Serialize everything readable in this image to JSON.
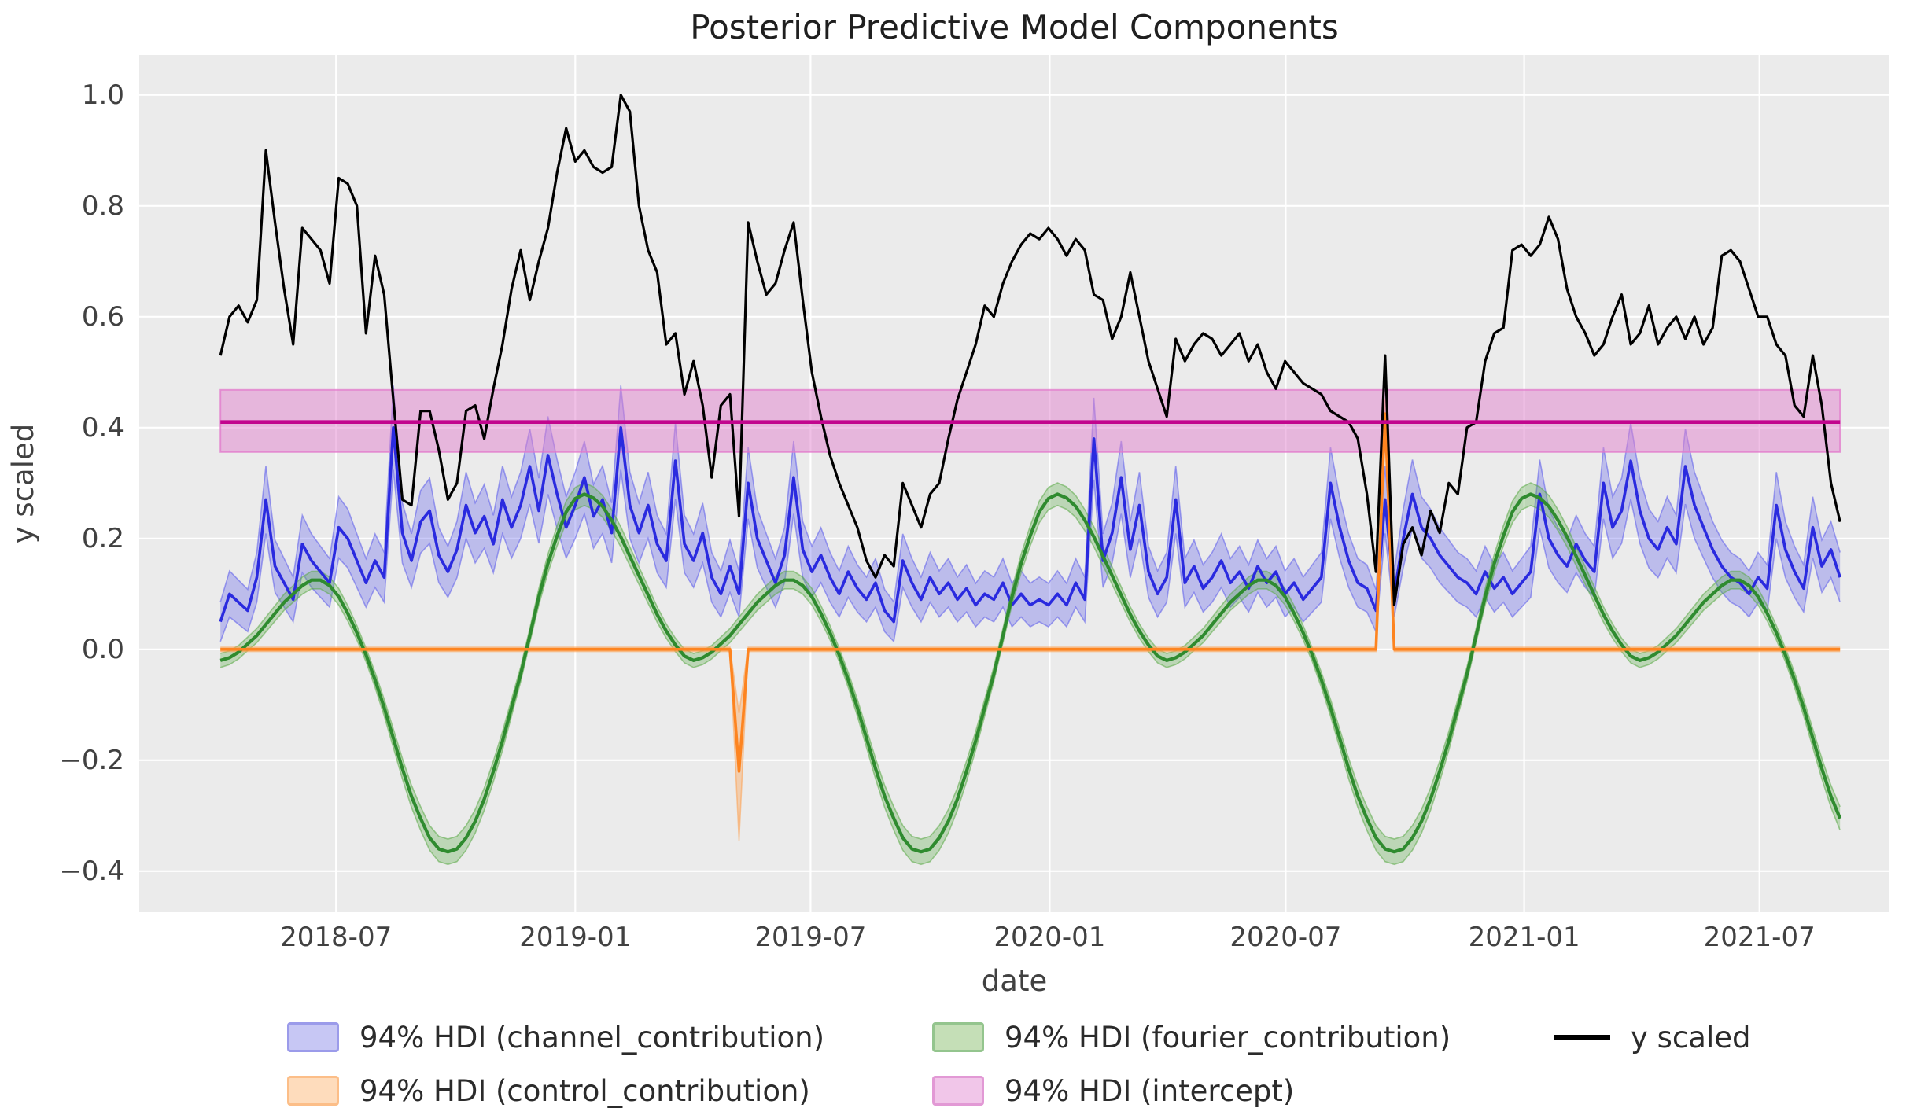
{
  "title": "Posterior Predictive Model Components",
  "axes": {
    "xlabel": "date",
    "ylabel": "y scaled",
    "background_color": "#ebebeb",
    "grid_color": "#ffffff",
    "x_range_decimal_years": [
      2018.081,
      2021.77
    ],
    "y_range": [
      -0.474,
      1.072
    ],
    "x_ticks": [
      {
        "year": 2018.4959,
        "label": "2018-07"
      },
      {
        "year": 2019.0,
        "label": "2019-01"
      },
      {
        "year": 2019.4959,
        "label": "2019-07"
      },
      {
        "year": 2020.0,
        "label": "2020-01"
      },
      {
        "year": 2020.4973,
        "label": "2020-07"
      },
      {
        "year": 2021.0,
        "label": "2021-01"
      },
      {
        "year": 2021.4959,
        "label": "2021-07"
      }
    ],
    "y_ticks": [
      {
        "v": 1.0,
        "label": "1.0"
      },
      {
        "v": 0.8,
        "label": "0.8"
      },
      {
        "v": 0.6,
        "label": "0.6"
      },
      {
        "v": 0.4,
        "label": "0.4"
      },
      {
        "v": 0.2,
        "label": "0.2"
      },
      {
        "v": 0.0,
        "label": "0.0"
      },
      {
        "v": -0.2,
        "label": "−0.2"
      },
      {
        "v": -0.4,
        "label": "−0.4"
      }
    ]
  },
  "legend": {
    "items": [
      {
        "label": "94% HDI (channel_contribution)",
        "swatch": "patch",
        "fill": "#c7c7f4",
        "border": "#9b9bea",
        "row": 0,
        "col": 0
      },
      {
        "label": "94% HDI (control_contribution)",
        "swatch": "patch",
        "fill": "#fedcbc",
        "border": "#fcbe88",
        "row": 1,
        "col": 0
      },
      {
        "label": "94% HDI (fourier_contribution)",
        "swatch": "patch",
        "fill": "#c5dfb7",
        "border": "#94c58e",
        "row": 0,
        "col": 1
      },
      {
        "label": "94% HDI (intercept)",
        "swatch": "patch",
        "fill": "#f1c6e9",
        "border": "#e299d5",
        "row": 1,
        "col": 1
      },
      {
        "label": "y scaled",
        "swatch": "line",
        "color": "#000000",
        "row": 0,
        "col": 2
      }
    ]
  },
  "chart_data": {
    "type": "line",
    "title": "Posterior Predictive Model Components",
    "xlabel": "date",
    "ylabel": "y scaled",
    "x_start_date": "2018-04-02",
    "x_start_decimal_year": 2018.2521,
    "x_step_days": 7,
    "n_points": 179,
    "series": [
      {
        "name": "y scaled",
        "role": "observed",
        "color": "#000000",
        "line_width": 3.2,
        "values": [
          0.53,
          0.6,
          0.62,
          0.59,
          0.63,
          0.9,
          0.77,
          0.65,
          0.55,
          0.76,
          0.74,
          0.72,
          0.66,
          0.85,
          0.84,
          0.8,
          0.57,
          0.71,
          0.64,
          0.45,
          0.27,
          0.26,
          0.43,
          0.43,
          0.36,
          0.27,
          0.3,
          0.43,
          0.44,
          0.38,
          0.47,
          0.55,
          0.65,
          0.72,
          0.63,
          0.7,
          0.76,
          0.86,
          0.94,
          0.88,
          0.9,
          0.87,
          0.86,
          0.87,
          1.0,
          0.97,
          0.8,
          0.72,
          0.68,
          0.55,
          0.57,
          0.46,
          0.52,
          0.44,
          0.31,
          0.44,
          0.46,
          0.24,
          0.77,
          0.7,
          0.64,
          0.66,
          0.72,
          0.77,
          0.63,
          0.5,
          0.42,
          0.35,
          0.3,
          0.26,
          0.22,
          0.16,
          0.13,
          0.17,
          0.15,
          0.3,
          0.26,
          0.22,
          0.28,
          0.3,
          0.38,
          0.45,
          0.5,
          0.55,
          0.62,
          0.6,
          0.66,
          0.7,
          0.73,
          0.75,
          0.74,
          0.76,
          0.74,
          0.71,
          0.74,
          0.72,
          0.64,
          0.63,
          0.56,
          0.6,
          0.68,
          0.6,
          0.52,
          0.47,
          0.42,
          0.56,
          0.52,
          0.55,
          0.57,
          0.56,
          0.53,
          0.55,
          0.57,
          0.52,
          0.55,
          0.5,
          0.47,
          0.52,
          0.5,
          0.48,
          0.47,
          0.46,
          0.43,
          0.42,
          0.41,
          0.38,
          0.28,
          0.14,
          0.53,
          0.08,
          0.19,
          0.22,
          0.17,
          0.25,
          0.21,
          0.3,
          0.28,
          0.4,
          0.41,
          0.52,
          0.57,
          0.58,
          0.72,
          0.73,
          0.71,
          0.73,
          0.78,
          0.74,
          0.65,
          0.6,
          0.57,
          0.53,
          0.55,
          0.6,
          0.64,
          0.55,
          0.57,
          0.62,
          0.55,
          0.58,
          0.6,
          0.56,
          0.6,
          0.55,
          0.58,
          0.71,
          0.72,
          0.7,
          0.65,
          0.6,
          0.6,
          0.55,
          0.53,
          0.44,
          0.42,
          0.53,
          0.44,
          0.3,
          0.23
        ]
      },
      {
        "name": "channel_contribution",
        "role": "hdi_band",
        "hdi_label": "94% HDI (channel_contribution)",
        "color": "#2a2adf",
        "line_width": 3.6,
        "band_fill": "rgba(80,80,235,0.30)",
        "band_edge": "rgba(80,80,235,0.50)",
        "hdi_halfwidth_base": 0.03,
        "hdi_halfwidth_scale": 0.115,
        "hdi_scale_on_abs": false,
        "values": [
          0.05,
          0.1,
          0.085,
          0.07,
          0.13,
          0.27,
          0.15,
          0.12,
          0.09,
          0.19,
          0.16,
          0.14,
          0.12,
          0.22,
          0.2,
          0.16,
          0.12,
          0.16,
          0.13,
          0.4,
          0.21,
          0.16,
          0.23,
          0.25,
          0.17,
          0.14,
          0.18,
          0.26,
          0.21,
          0.24,
          0.19,
          0.27,
          0.22,
          0.26,
          0.33,
          0.25,
          0.35,
          0.28,
          0.22,
          0.26,
          0.31,
          0.24,
          0.27,
          0.21,
          0.4,
          0.26,
          0.21,
          0.26,
          0.19,
          0.16,
          0.34,
          0.19,
          0.16,
          0.21,
          0.13,
          0.1,
          0.15,
          0.1,
          0.3,
          0.2,
          0.16,
          0.12,
          0.17,
          0.31,
          0.18,
          0.14,
          0.17,
          0.13,
          0.1,
          0.14,
          0.11,
          0.09,
          0.12,
          0.07,
          0.05,
          0.16,
          0.12,
          0.09,
          0.13,
          0.1,
          0.12,
          0.09,
          0.11,
          0.08,
          0.1,
          0.09,
          0.12,
          0.08,
          0.1,
          0.08,
          0.09,
          0.08,
          0.1,
          0.08,
          0.12,
          0.09,
          0.38,
          0.16,
          0.21,
          0.31,
          0.18,
          0.26,
          0.14,
          0.1,
          0.13,
          0.27,
          0.12,
          0.15,
          0.11,
          0.13,
          0.16,
          0.12,
          0.14,
          0.11,
          0.15,
          0.12,
          0.14,
          0.1,
          0.12,
          0.09,
          0.11,
          0.13,
          0.3,
          0.22,
          0.16,
          0.12,
          0.11,
          0.07,
          0.27,
          0.1,
          0.2,
          0.28,
          0.22,
          0.2,
          0.17,
          0.15,
          0.13,
          0.12,
          0.1,
          0.14,
          0.11,
          0.13,
          0.1,
          0.12,
          0.14,
          0.28,
          0.2,
          0.17,
          0.15,
          0.19,
          0.16,
          0.14,
          0.3,
          0.22,
          0.25,
          0.34,
          0.25,
          0.2,
          0.18,
          0.22,
          0.19,
          0.33,
          0.26,
          0.22,
          0.18,
          0.15,
          0.13,
          0.12,
          0.1,
          0.13,
          0.11,
          0.26,
          0.18,
          0.14,
          0.11,
          0.22,
          0.15,
          0.18,
          0.13
        ]
      },
      {
        "name": "fourier_contribution",
        "role": "hdi_band",
        "hdi_label": "94% HDI (fourier_contribution)",
        "color": "#2f8b2f",
        "line_width": 4.2,
        "band_fill": "rgba(90,170,70,0.32)",
        "band_edge": "rgba(90,170,70,0.55)",
        "hdi_halfwidth_base": 0.012,
        "hdi_halfwidth_scale": 0.03,
        "hdi_scale_on_abs": true,
        "values": [
          -0.02,
          -0.015,
          -0.005,
          0.01,
          0.025,
          0.045,
          0.065,
          0.085,
          0.1,
          0.115,
          0.125,
          0.125,
          0.115,
          0.095,
          0.065,
          0.03,
          -0.01,
          -0.055,
          -0.105,
          -0.16,
          -0.215,
          -0.265,
          -0.305,
          -0.34,
          -0.36,
          -0.365,
          -0.36,
          -0.34,
          -0.31,
          -0.27,
          -0.22,
          -0.165,
          -0.105,
          -0.045,
          0.025,
          0.095,
          0.155,
          0.205,
          0.248,
          0.272,
          0.28,
          0.273,
          0.258,
          0.233,
          0.203,
          0.168,
          0.133,
          0.098,
          0.063,
          0.033,
          0.008,
          -0.012,
          -0.02,
          -0.015,
          -0.005,
          0.01,
          0.025,
          0.045,
          0.065,
          0.085,
          0.1,
          0.115,
          0.125,
          0.125,
          0.115,
          0.095,
          0.065,
          0.03,
          -0.01,
          -0.055,
          -0.105,
          -0.16,
          -0.215,
          -0.265,
          -0.305,
          -0.34,
          -0.36,
          -0.365,
          -0.36,
          -0.34,
          -0.31,
          -0.27,
          -0.22,
          -0.165,
          -0.105,
          -0.045,
          0.025,
          0.095,
          0.155,
          0.205,
          0.248,
          0.272,
          0.28,
          0.273,
          0.258,
          0.233,
          0.203,
          0.168,
          0.133,
          0.098,
          0.063,
          0.033,
          0.008,
          -0.012,
          -0.02,
          -0.015,
          -0.005,
          0.01,
          0.025,
          0.045,
          0.065,
          0.085,
          0.1,
          0.115,
          0.125,
          0.125,
          0.115,
          0.095,
          0.065,
          0.03,
          -0.01,
          -0.055,
          -0.105,
          -0.16,
          -0.215,
          -0.265,
          -0.305,
          -0.34,
          -0.36,
          -0.365,
          -0.36,
          -0.34,
          -0.31,
          -0.27,
          -0.22,
          -0.165,
          -0.105,
          -0.045,
          0.025,
          0.095,
          0.155,
          0.205,
          0.248,
          0.272,
          0.28,
          0.273,
          0.258,
          0.233,
          0.203,
          0.168,
          0.133,
          0.098,
          0.063,
          0.033,
          0.008,
          -0.012,
          -0.02,
          -0.015,
          -0.005,
          0.01,
          0.025,
          0.045,
          0.065,
          0.085,
          0.1,
          0.115,
          0.125,
          0.125,
          0.115,
          0.095,
          0.065,
          0.03,
          -0.01,
          -0.055,
          -0.105,
          -0.16,
          -0.215,
          -0.265,
          -0.305
        ]
      },
      {
        "name": "control_contribution",
        "role": "hdi_band_sparse",
        "hdi_label": "94% HDI (control_contribution)",
        "color": "#fd8420",
        "line_width": 3.6,
        "band_fill": "rgba(253,160,80,0.40)",
        "band_edge": "rgba(253,160,80,0.55)",
        "baseline_value": 0.0,
        "hdi_halfwidth_base": 0.004,
        "events": [
          {
            "week": 57,
            "date": "2019-05-06",
            "value": -0.22,
            "hdi_lo": -0.345,
            "hdi_hi": -0.115
          },
          {
            "week": 128,
            "date": "2020-09-14",
            "value": 0.425,
            "hdi_lo": 0.398,
            "hdi_hi": 0.452
          }
        ]
      },
      {
        "name": "intercept",
        "role": "constant_hdi",
        "hdi_label": "94% HDI (intercept)",
        "color": "#c2058e",
        "line_width": 4.6,
        "band_fill": "rgba(225,130,205,0.50)",
        "band_edge": "rgba(226,120,203,0.75)",
        "mean": 0.41,
        "hdi_lo": 0.356,
        "hdi_hi": 0.468
      }
    ]
  }
}
